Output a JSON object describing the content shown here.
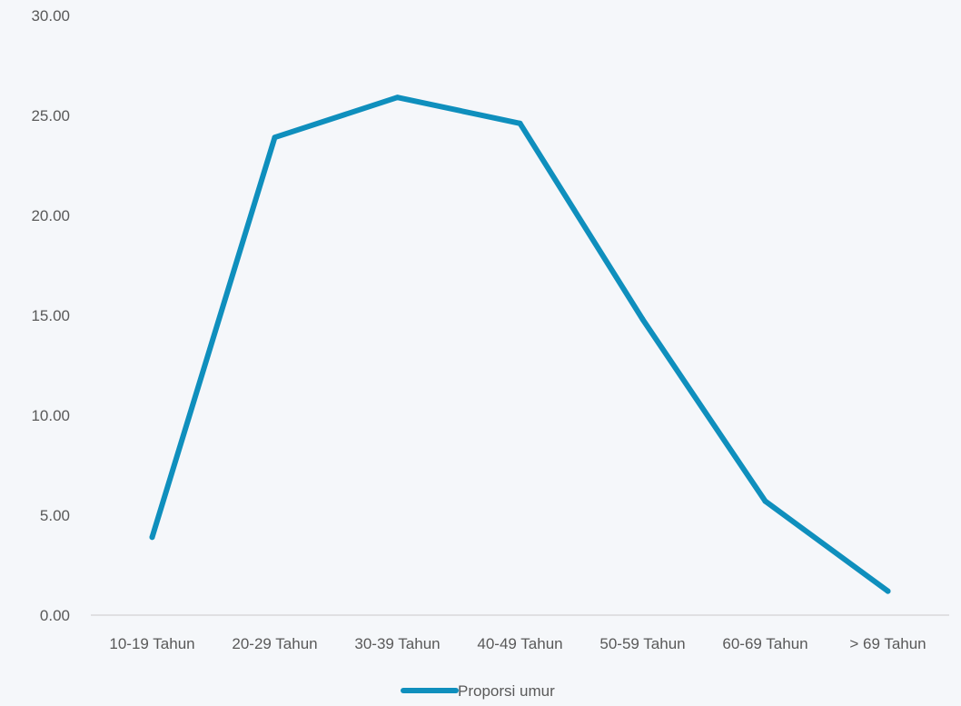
{
  "chart_data": {
    "type": "line",
    "categories": [
      "10-19 Tahun",
      "20-29 Tahun",
      "30-39 Tahun",
      "40-49 Tahun",
      "50-59 Tahun",
      "60-69 Tahun",
      "> 69 Tahun"
    ],
    "series": [
      {
        "name": "Proporsi umur",
        "values": [
          3.9,
          23.9,
          25.9,
          24.6,
          14.8,
          5.7,
          1.2
        ],
        "color": "#0f8fbd"
      }
    ],
    "ylim": [
      0,
      30
    ],
    "yticks": [
      "0.00",
      "5.00",
      "10.00",
      "15.00",
      "20.00",
      "25.00",
      "30.00"
    ],
    "grid": false,
    "legend_position": "bottom",
    "axis_color": "#d9d9d9"
  }
}
